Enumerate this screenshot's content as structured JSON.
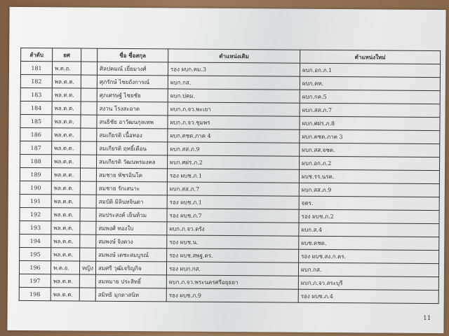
{
  "headers": [
    "ลำดับ",
    "ยศ",
    "",
    "ชื่อ ชื่อสกุล",
    "ตำแหน่งเดิม",
    "ตำแหน่งใหม่"
  ],
  "rows": [
    [
      "181",
      "พ.ต.อ.",
      "",
      "ศิลปคมณ์ เยี่ยมวงศ์",
      "รอง ผบก.คม.3",
      "ผบก.อก.ภ.1"
    ],
    [
      "182",
      "พล.ต.ต.",
      "",
      "ศุภรักษ์ ไชยถังการณ์",
      "ผบก.กส.",
      "ผบก.คท."
    ],
    [
      "183",
      "พล.ต.ต.",
      "",
      "ศุภเศรษฐ์ ไชยชัย",
      "ผบก.ปคม.",
      "ผบก.กค.5"
    ],
    [
      "184",
      "พล.ต.ต.",
      "",
      "สงวน โรงสะอาด",
      "ผบก.ภ.จว.พะเยา",
      "ผบก.สส.ภ.7"
    ],
    [
      "185",
      "พล.ต.ต.",
      "",
      "สนธิชัย อาวัฒนกุลเทพ",
      "ผบก.ภ.จว.ชุมพร",
      "ผบก.ศฝร.ภ.8"
    ],
    [
      "186",
      "พล.ต.ต.",
      "",
      "สมเกียรติ เนื้อทอง",
      "ผบก.ตชด.ภาค 4",
      "ผบก.ตชด.ภาค 3"
    ],
    [
      "187",
      "พล.ต.ต.",
      "",
      "สมเกียรติ ฤทธิ์เดือน",
      "ผบก.สส.ภ.9",
      "ผบก.สส.จชต."
    ],
    [
      "188",
      "พล.ต.ต.",
      "",
      "สมเกียรติ วัฒนพรมงคล",
      "ผบก.ศฝร.ภ.2",
      "ผบก.อก.ภ.2"
    ],
    [
      "189",
      "พล.ต.ต.",
      "",
      "สมชาย พัชรอินโต",
      "รอง ผบช.ภ.1",
      "ผบช.รร.นรต."
    ],
    [
      "190",
      "พล.ต.ต.",
      "",
      "สมชาย รักเสนาะ",
      "ผบก.สส.ภ.7",
      "ผบก.สส.ภ.9"
    ],
    [
      "191",
      "พล.ต.ต.",
      "",
      "สมบัติ มิลินทจินดา",
      "รอง ผบช.ภ.1",
      "จตร."
    ],
    [
      "192",
      "พล.ต.ต.",
      "",
      "สมประสงค์ เย็นท้วม",
      "รอง ผบช.ภ.7",
      "รอง ผบช.ภ.2"
    ],
    [
      "193",
      "พล.ต.ต.",
      "",
      "สมพงศ์ ทองใบ",
      "ผบก.ภ.จว.ตรัง",
      "ผบก.ส.4"
    ],
    [
      "194",
      "พล.ต.ต.",
      "",
      "สมพงษ์ จิงดวง",
      "รอง ผบช.น.",
      "ผบช.ตชด."
    ],
    [
      "195",
      "พล.ต.ต.",
      "",
      "สมพงษ์ เตชะสมบูรณ์",
      "รอง ผบช.สพฐ.ตร.",
      "รอง ผบช.สง.ก.ตร."
    ],
    [
      "196",
      "พ.ต.อ.",
      "หญิง",
      "สมศรี วุฒิเจริญกิจ",
      "รอง ผบก.กส.",
      "ผบก.กส."
    ],
    [
      "197",
      "พล.ต.ต.",
      "",
      "สมหมาย ประสิทธิ์",
      "ผบก.ภ.จว.พระนครศรีอยุธยา",
      "ผบก.ภ.จว.สระบุรี"
    ],
    [
      "198",
      "พล.ต.ต.",
      "",
      "สมิทธิ มุกดาสนิท",
      "รอง ผบช.ภ.9",
      "รอง ผบช.ภ.4"
    ]
  ],
  "page_number": "11"
}
